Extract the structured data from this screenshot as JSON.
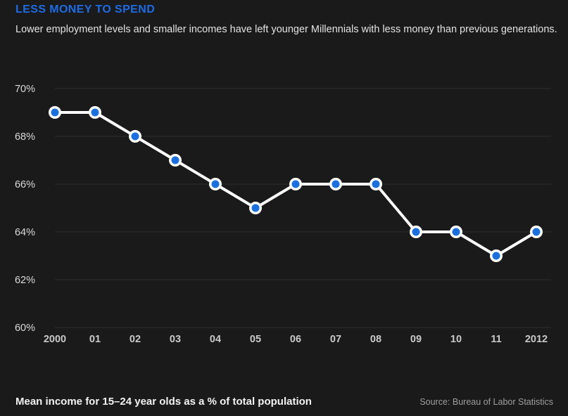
{
  "page": {
    "background_color": "#1a1a1a"
  },
  "header": {
    "title": "LESS MONEY TO SPEND",
    "title_color": "#1d6ce6",
    "subtitle": "Lower employment levels and smaller incomes have left younger Millennials with less money than previous generations."
  },
  "footer": {
    "caption": "Mean income for 15–24 year olds as a % of total population",
    "source": "Source: Bureau of Labor Statistics"
  },
  "chart_data": {
    "type": "line",
    "title": "",
    "xlabel": "",
    "ylabel": "",
    "categories": [
      "2000",
      "01",
      "02",
      "03",
      "04",
      "05",
      "06",
      "07",
      "08",
      "09",
      "10",
      "11",
      "2012"
    ],
    "values": [
      69,
      69,
      68,
      67,
      66,
      65,
      66,
      66,
      66,
      64,
      64,
      63,
      64
    ],
    "ylim": [
      60,
      70
    ],
    "yticks": [
      60,
      62,
      64,
      66,
      68,
      70
    ],
    "ytick_labels": [
      "60%",
      "62%",
      "64%",
      "66%",
      "68%",
      "70%"
    ],
    "grid": true,
    "legend": "none",
    "colors": {
      "line": "#ffffff",
      "marker_fill": "#1a6fe0",
      "marker_ring": "#ffffff",
      "gridline": "#2e2e2e",
      "ytick_label": "#dadada",
      "xtick_label": "#c9c9c9"
    }
  }
}
